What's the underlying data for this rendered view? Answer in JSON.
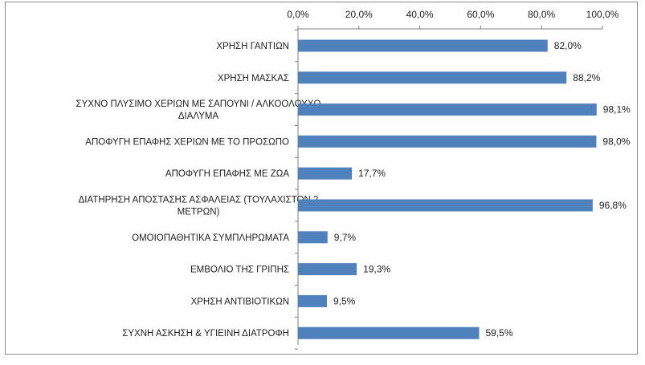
{
  "chart_data": {
    "type": "bar",
    "orientation": "horizontal",
    "categories": [
      [
        "ΧΡΗΣΗ ΓΑΝΤΙΩΝ"
      ],
      [
        "ΧΡΗΣΗ ΜΑΣΚΑΣ"
      ],
      [
        "ΣΥΧΝΟ ΠΛΥΣΙΜΟ ΧΕΡΙΩΝ ΜΕ ΣΑΠΟΥΝΙ / ΑΛΚΟΟΛΟΥΧΟ",
        "ΔΙΑΛΥΜΑ"
      ],
      [
        "ΑΠΟΦΥΓΗ ΕΠΑΦΗΣ ΧΕΡΙΩΝ ΜΕ ΤΟ ΠΡΟΣΩΠΟ"
      ],
      [
        "ΑΠΟΦΥΓΗ ΕΠΑΦΗΣ ΜΕ ΖΩΑ"
      ],
      [
        "ΔΙΑΤΗΡΗΣΗ ΑΠΟΣΤΑΣΗΣ ΑΣΦΑΛΕΙΑΣ (ΤΟΥΛΑΧΙΣΤΟΝ 2",
        "ΜΕΤΡΩΝ)"
      ],
      [
        "ΟΜΟΙΟΠΑΘΗΤΙΚΑ ΣΥΜΠΛΗΡΩΜΑΤΑ"
      ],
      [
        "ΕΜΒΟΛΙΟ ΤΗΣ ΓΡΙΠΗΣ"
      ],
      [
        "ΧΡΗΣΗ ΑΝΤΙΒΙΟΤΙΚΩΝ"
      ],
      [
        "ΣΥΧΝΗ ΑΣΚΗΣΗ & ΥΓΙΕΙΝΗ ΔΙΑΤΡΟΦΗ"
      ]
    ],
    "values": [
      82.0,
      88.2,
      98.1,
      98.0,
      17.7,
      96.8,
      9.7,
      19.3,
      9.5,
      59.5
    ],
    "data_labels": [
      "82,0%",
      "88,2%",
      "98,1%",
      "98,0%",
      "17,7%",
      "96,8%",
      "9,7%",
      "19,3%",
      "9,5%",
      "59,5%"
    ],
    "xlim": [
      0,
      100
    ],
    "x_ticks": [
      0,
      20,
      40,
      60,
      80,
      100
    ],
    "x_tick_labels": [
      "0,0%",
      "20,0%",
      "40,0%",
      "60,0%",
      "80,0%",
      "100,0%"
    ],
    "axis_position": "top",
    "grid": false,
    "legend": "none",
    "bar_color": "#4f81bd"
  }
}
